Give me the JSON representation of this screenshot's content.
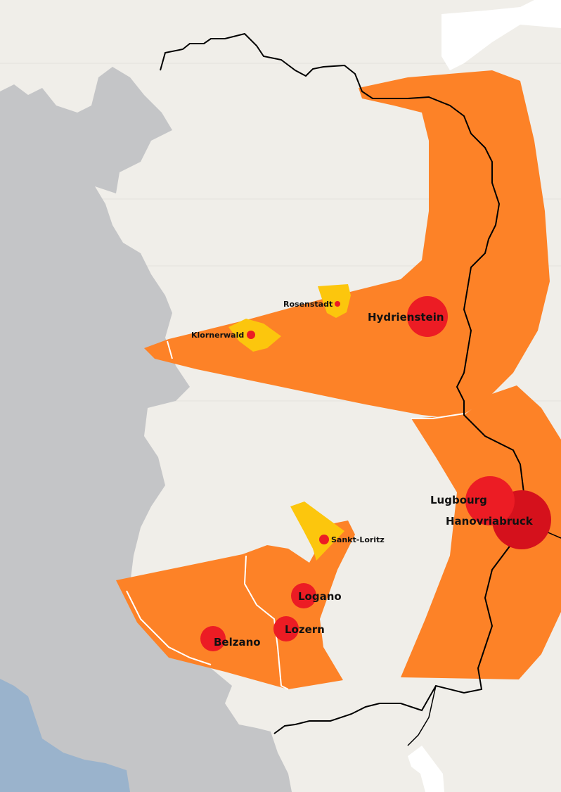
{
  "map": {
    "colors": {
      "land": "#f0eee9",
      "neighbor": "#c4c5c7",
      "water": "#9ab3cc",
      "zone_high": "#fd8227",
      "zone_mid": "#fcc60d",
      "city": "#ec1c24",
      "city_dark": "#d5111c",
      "border": "#000000"
    },
    "cities": [
      {
        "name": "Hydrienstein",
        "size": "large"
      },
      {
        "name": "Rosenstadt",
        "size": "small"
      },
      {
        "name": "Klornerwald",
        "size": "small"
      },
      {
        "name": "Lugbourg",
        "size": "large"
      },
      {
        "name": "Hanovriabruck",
        "size": "large"
      },
      {
        "name": "Sankt-Loritz",
        "size": "small"
      },
      {
        "name": "Logano",
        "size": "large"
      },
      {
        "name": "Lozern",
        "size": "large"
      },
      {
        "name": "Belzano",
        "size": "large"
      }
    ]
  }
}
